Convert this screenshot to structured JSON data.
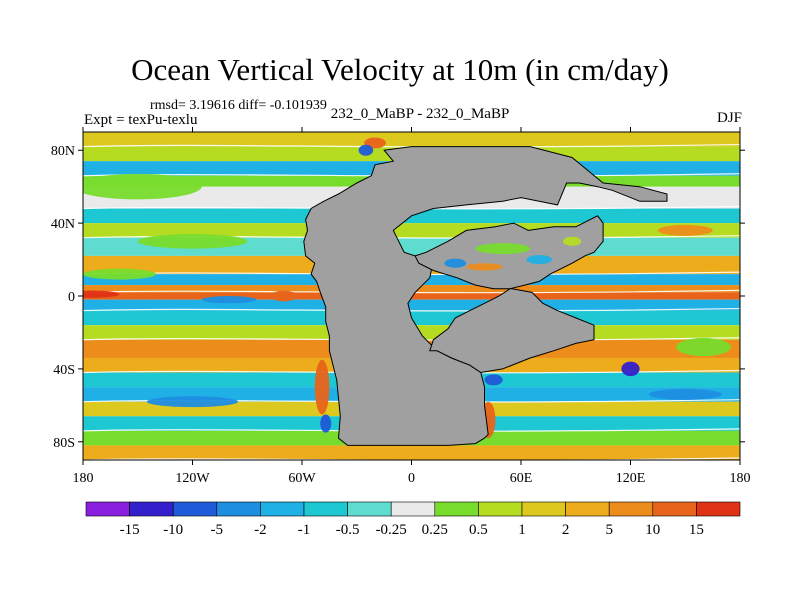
{
  "chart_data": {
    "type": "heatmap",
    "title": "Ocean Vertical Velocity at 10m (in cm/day)",
    "stats_text": "rmsd= 3.19616 diff= -0.101939",
    "left_label": "Expt = texPu-texlu",
    "center_label": "232_0_MaBP - 232_0_MaBP",
    "right_label": "DJF",
    "xlim": [
      -180,
      180
    ],
    "ylim": [
      -90,
      90
    ],
    "x_ticks": [
      {
        "value": -180,
        "label": "180"
      },
      {
        "value": -120,
        "label": "120W"
      },
      {
        "value": -60,
        "label": "60W"
      },
      {
        "value": 0,
        "label": "0"
      },
      {
        "value": 60,
        "label": "60E"
      },
      {
        "value": 120,
        "label": "120E"
      },
      {
        "value": 180,
        "label": "180"
      }
    ],
    "y_ticks": [
      {
        "value": 80,
        "label": "80N"
      },
      {
        "value": 40,
        "label": "40N"
      },
      {
        "value": 0,
        "label": "0"
      },
      {
        "value": -40,
        "label": "40S"
      },
      {
        "value": -80,
        "label": "80S"
      }
    ],
    "colorbar": {
      "levels": [
        "-15",
        "-10",
        "-5",
        "-2",
        "-1",
        "-0.5",
        "-0.25",
        "0.25",
        "0.5",
        "1",
        "2",
        "5",
        "10",
        "15"
      ],
      "colors": [
        "#8a1fe0",
        "#3320cc",
        "#1f5ad8",
        "#1e8ee0",
        "#1fb0e6",
        "#1ec8d2",
        "#5fdcd0",
        "#eaeaea",
        "#78dc2c",
        "#b6dc22",
        "#dcc81e",
        "#ecac1c",
        "#ec8c1a",
        "#e8641a",
        "#e03214"
      ]
    },
    "land_color": "#a0a0a0",
    "continents": [
      {
        "name": "western-continent",
        "outline": [
          [
            -15,
            80
          ],
          [
            -10,
            74
          ],
          [
            -20,
            72
          ],
          [
            -22,
            66
          ],
          [
            -30,
            62
          ],
          [
            -40,
            56
          ],
          [
            -48,
            52
          ],
          [
            -55,
            48
          ],
          [
            -58,
            42
          ],
          [
            -57,
            36
          ],
          [
            -59,
            30
          ],
          [
            -58,
            22
          ],
          [
            -53,
            18
          ],
          [
            -55,
            12
          ],
          [
            -52,
            8
          ],
          [
            -50,
            2
          ],
          [
            -47,
            -6
          ],
          [
            -47,
            -14
          ],
          [
            -45,
            -22
          ],
          [
            -45,
            -30
          ],
          [
            -43,
            -38
          ],
          [
            -41,
            -46
          ],
          [
            -40,
            -56
          ],
          [
            -39,
            -66
          ],
          [
            -40,
            -78
          ],
          [
            -35,
            -82
          ],
          [
            -15,
            -82
          ],
          [
            0,
            -82
          ],
          [
            20,
            -82
          ],
          [
            35,
            -81
          ],
          [
            40,
            -78
          ],
          [
            42,
            -76
          ],
          [
            40,
            -60
          ],
          [
            40,
            -50
          ],
          [
            38,
            -42
          ],
          [
            32,
            -38
          ],
          [
            22,
            -34
          ],
          [
            14,
            -30
          ],
          [
            6,
            -22
          ],
          [
            0,
            -12
          ],
          [
            -2,
            -4
          ],
          [
            2,
            2
          ],
          [
            10,
            10
          ],
          [
            12,
            20
          ],
          [
            2,
            22
          ],
          [
            -4,
            24
          ],
          [
            -8,
            32
          ],
          [
            -10,
            36
          ],
          [
            0,
            44
          ],
          [
            12,
            48
          ],
          [
            30,
            50
          ],
          [
            50,
            52
          ],
          [
            60,
            54
          ],
          [
            80,
            50
          ],
          [
            85,
            62
          ],
          [
            92,
            62
          ],
          [
            102,
            60
          ],
          [
            110,
            58
          ],
          [
            125,
            52
          ],
          [
            140,
            52
          ],
          [
            140,
            56
          ],
          [
            125,
            60
          ],
          [
            105,
            62
          ],
          [
            88,
            76
          ],
          [
            65,
            82
          ],
          [
            0,
            82
          ],
          [
            -15,
            80
          ]
        ]
      },
      {
        "name": "eastern-continent",
        "outline": [
          [
            2,
            22
          ],
          [
            8,
            24
          ],
          [
            20,
            30
          ],
          [
            30,
            36
          ],
          [
            46,
            38
          ],
          [
            56,
            40
          ],
          [
            64,
            36
          ],
          [
            78,
            38
          ],
          [
            90,
            38
          ],
          [
            102,
            44
          ],
          [
            105,
            40
          ],
          [
            105,
            30
          ],
          [
            100,
            24
          ],
          [
            95,
            22
          ],
          [
            88,
            18
          ],
          [
            76,
            12
          ],
          [
            70,
            8
          ],
          [
            62,
            6
          ],
          [
            54,
            4
          ],
          [
            48,
            0
          ],
          [
            40,
            -4
          ],
          [
            32,
            -8
          ],
          [
            24,
            -12
          ],
          [
            20,
            -18
          ],
          [
            12,
            -24
          ],
          [
            10,
            -30
          ],
          [
            14,
            -30
          ],
          [
            22,
            -34
          ],
          [
            32,
            -38
          ],
          [
            38,
            -42
          ],
          [
            50,
            -40
          ],
          [
            65,
            -34
          ],
          [
            78,
            -30
          ],
          [
            90,
            -26
          ],
          [
            100,
            -24
          ],
          [
            100,
            -16
          ],
          [
            90,
            -12
          ],
          [
            80,
            -8
          ],
          [
            72,
            -4
          ],
          [
            66,
            2
          ],
          [
            55,
            4
          ],
          [
            45,
            4
          ],
          [
            35,
            6
          ],
          [
            25,
            10
          ],
          [
            12,
            14
          ],
          [
            4,
            18
          ],
          [
            2,
            22
          ]
        ]
      }
    ],
    "ocean_bands": [
      {
        "lat_top": 90,
        "lat_bottom": 82,
        "level": "1"
      },
      {
        "lat_top": 82,
        "lat_bottom": 74,
        "level": "0.5"
      },
      {
        "lat_top": 74,
        "lat_bottom": 66,
        "level": "-2"
      },
      {
        "lat_top": 66,
        "lat_bottom": 60,
        "level": "0.25"
      },
      {
        "lat_top": 60,
        "lat_bottom": 48,
        "level": "-0.25"
      },
      {
        "lat_top": 48,
        "lat_bottom": 40,
        "level": "-1"
      },
      {
        "lat_top": 40,
        "lat_bottom": 32,
        "level": "0.5"
      },
      {
        "lat_top": 32,
        "lat_bottom": 22,
        "level": "-0.5"
      },
      {
        "lat_top": 22,
        "lat_bottom": 12,
        "level": "2"
      },
      {
        "lat_top": 12,
        "lat_bottom": 6,
        "level": "-2"
      },
      {
        "lat_top": 6,
        "lat_bottom": 2,
        "level": "5"
      },
      {
        "lat_top": 2,
        "lat_bottom": -2,
        "level": "10"
      },
      {
        "lat_top": -2,
        "lat_bottom": -8,
        "level": "-2"
      },
      {
        "lat_top": -8,
        "lat_bottom": -16,
        "level": "-1"
      },
      {
        "lat_top": -16,
        "lat_bottom": -24,
        "level": "0.5"
      },
      {
        "lat_top": -24,
        "lat_bottom": -34,
        "level": "5"
      },
      {
        "lat_top": -34,
        "lat_bottom": -42,
        "level": "2"
      },
      {
        "lat_top": -42,
        "lat_bottom": -50,
        "level": "-1"
      },
      {
        "lat_top": -50,
        "lat_bottom": -58,
        "level": "-2"
      },
      {
        "lat_top": -58,
        "lat_bottom": -66,
        "level": "1"
      },
      {
        "lat_top": -66,
        "lat_bottom": -74,
        "level": "-1"
      },
      {
        "lat_top": -74,
        "lat_bottom": -82,
        "level": "0.25"
      },
      {
        "lat_top": -82,
        "lat_bottom": -90,
        "level": "2"
      }
    ],
    "ocean_patches": [
      {
        "lon": -150,
        "lat": 60,
        "w": 70,
        "h": 14,
        "level": "0.25"
      },
      {
        "lon": -120,
        "lat": 30,
        "w": 60,
        "h": 8,
        "level": "0.25"
      },
      {
        "lon": -160,
        "lat": 12,
        "w": 40,
        "h": 6,
        "level": "0.25"
      },
      {
        "lon": -175,
        "lat": 1,
        "w": 30,
        "h": 4,
        "level": "15"
      },
      {
        "lon": -100,
        "lat": -2,
        "w": 30,
        "h": 4,
        "level": "-5"
      },
      {
        "lon": -70,
        "lat": 0,
        "w": 14,
        "h": 6,
        "level": "10"
      },
      {
        "lon": -49,
        "lat": -50,
        "w": 8,
        "h": 30,
        "level": "10"
      },
      {
        "lon": -47,
        "lat": -70,
        "w": 6,
        "h": 10,
        "level": "-10"
      },
      {
        "lon": 42,
        "lat": -68,
        "w": 8,
        "h": 20,
        "level": "10"
      },
      {
        "lon": 45,
        "lat": -46,
        "w": 10,
        "h": 6,
        "level": "-10"
      },
      {
        "lon": 120,
        "lat": -40,
        "w": 10,
        "h": 8,
        "level": "-15"
      },
      {
        "lon": -20,
        "lat": 84,
        "w": 12,
        "h": 6,
        "level": "10"
      },
      {
        "lon": -25,
        "lat": 80,
        "w": 8,
        "h": 6,
        "level": "-10"
      },
      {
        "lon": 150,
        "lat": 36,
        "w": 30,
        "h": 6,
        "level": "5"
      },
      {
        "lon": 160,
        "lat": -28,
        "w": 30,
        "h": 10,
        "level": "0.25"
      },
      {
        "lon": 80,
        "lat": -18,
        "w": 40,
        "h": 8,
        "level": "5"
      },
      {
        "lon": -120,
        "lat": -58,
        "w": 50,
        "h": 6,
        "level": "-5"
      },
      {
        "lon": 150,
        "lat": -54,
        "w": 40,
        "h": 6,
        "level": "-5"
      }
    ],
    "inland_sea_patches": [
      {
        "lon": 50,
        "lat": 26,
        "w": 30,
        "h": 6,
        "level": "0.25"
      },
      {
        "lon": 70,
        "lat": 20,
        "w": 14,
        "h": 5,
        "level": "-2"
      },
      {
        "lon": 40,
        "lat": 16,
        "w": 20,
        "h": 4,
        "level": "5"
      },
      {
        "lon": 24,
        "lat": 18,
        "w": 12,
        "h": 5,
        "level": "-5"
      },
      {
        "lon": 88,
        "lat": 30,
        "w": 10,
        "h": 5,
        "level": "0.5"
      }
    ]
  }
}
